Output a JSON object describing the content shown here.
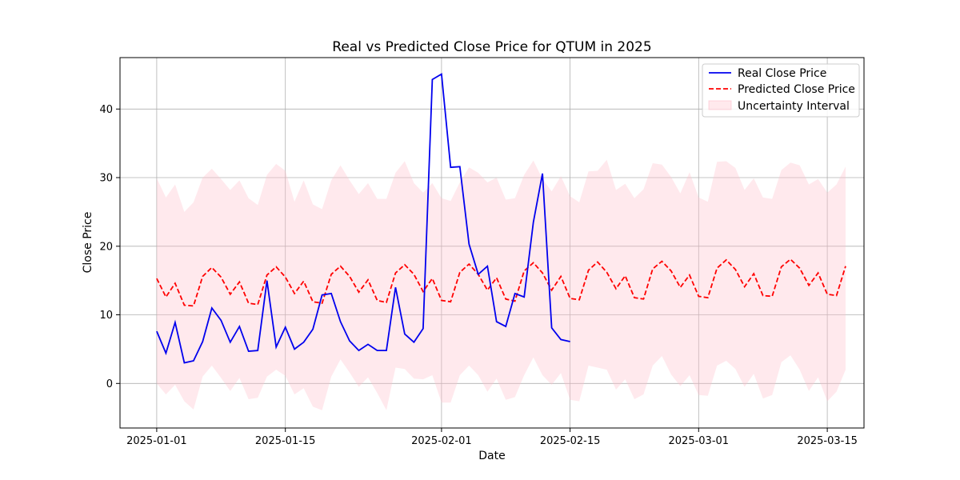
{
  "chart_data": {
    "type": "line",
    "title": "Real vs Predicted Close Price for QTUM in 2025",
    "xlabel": "Date",
    "ylabel": "Close Price",
    "x_start": "2025-01-01",
    "xlim": [
      "2024-12-28",
      "2025-03-19"
    ],
    "ylim": [
      -6.5,
      47.5
    ],
    "x_ticks": [
      "2025-01-01",
      "2025-01-15",
      "2025-02-01",
      "2025-02-15",
      "2025-03-01",
      "2025-03-15"
    ],
    "y_ticks": [
      0,
      10,
      20,
      30,
      40
    ],
    "grid": true,
    "legend_position": "top-right",
    "colors": {
      "real": "#0000ee",
      "predicted": "#ff0000",
      "interval": "#ffc0cb"
    },
    "series": [
      {
        "name": "Real Close Price",
        "style": "solid",
        "values": [
          7.6,
          4.4,
          8.9,
          3.0,
          3.3,
          6.1,
          11.0,
          9.2,
          6.0,
          8.3,
          4.7,
          4.8,
          15.0,
          5.3,
          8.2,
          5.0,
          6.0,
          7.9,
          12.9,
          13.1,
          9.0,
          6.2,
          4.8,
          5.7,
          4.8,
          4.8,
          14.0,
          7.2,
          6.0,
          8.0,
          44.3,
          45.1,
          31.5,
          31.6,
          20.3,
          15.9,
          17.1,
          9.0,
          8.3,
          13.1,
          12.6,
          23.5,
          30.6,
          8.1,
          6.4,
          6.1
        ]
      },
      {
        "name": "Predicted Close Price",
        "style": "dashed",
        "values": [
          15.3,
          12.6,
          14.6,
          11.4,
          11.3,
          15.6,
          16.9,
          15.5,
          13.0,
          14.8,
          11.7,
          11.5,
          15.8,
          17.0,
          15.5,
          13.1,
          14.9,
          11.9,
          11.7,
          15.9,
          17.1,
          15.6,
          13.3,
          15.1,
          12.1,
          11.8,
          16.1,
          17.3,
          15.9,
          13.4,
          15.3,
          12.1,
          11.9,
          16.2,
          17.4,
          15.9,
          13.6,
          15.4,
          12.3,
          12.0,
          16.4,
          17.6,
          16.1,
          13.6,
          15.6,
          12.4,
          12.2,
          16.5,
          17.7,
          16.2,
          13.8,
          15.7,
          12.5,
          12.3,
          16.7,
          17.8,
          16.4,
          14.0,
          15.8,
          12.7,
          12.5,
          16.8,
          18.0,
          16.6,
          14.1,
          16.0,
          12.8,
          12.7,
          17.0,
          18.1,
          16.8,
          14.3,
          16.1,
          13.0,
          12.8,
          17.1
        ]
      }
    ],
    "interval": {
      "name": "Uncertainty Interval",
      "upper": [
        29.9,
        27.1,
        29.0,
        25.0,
        26.4,
        30.0,
        31.3,
        29.8,
        28.2,
        29.6,
        27.0,
        26.0,
        30.4,
        32.0,
        31.0,
        26.5,
        29.6,
        26.1,
        25.4,
        29.6,
        31.8,
        29.6,
        27.6,
        29.2,
        26.9,
        26.9,
        30.7,
        32.4,
        29.2,
        27.8,
        29.2,
        27.0,
        26.6,
        29.3,
        31.5,
        30.7,
        29.3,
        30.0,
        26.8,
        27.0,
        30.4,
        32.5,
        29.8,
        28.0,
        30.2,
        27.3,
        26.4,
        30.9,
        31.0,
        32.6,
        28.2,
        29.1,
        27.0,
        28.3,
        32.1,
        31.9,
        30.1,
        27.7,
        30.8,
        27.1,
        26.5,
        32.3,
        32.4,
        31.4,
        28.2,
        29.9,
        27.1,
        26.9,
        31.1,
        32.2,
        31.8,
        29.0,
        29.8,
        27.8,
        29.0,
        31.6
      ],
      "lower": [
        0.0,
        -1.6,
        -0.2,
        -2.6,
        -3.8,
        1.0,
        2.6,
        0.8,
        -1.1,
        0.8,
        -2.3,
        -2.1,
        1.0,
        2.0,
        1.1,
        -1.6,
        -0.7,
        -3.4,
        -3.9,
        1.0,
        3.5,
        1.6,
        -0.5,
        0.9,
        -1.4,
        -3.9,
        2.3,
        2.1,
        0.7,
        0.6,
        1.2,
        -2.8,
        -2.8,
        1.2,
        2.6,
        1.2,
        -1.2,
        0.7,
        -2.4,
        -2.0,
        1.2,
        3.8,
        1.2,
        -0.2,
        1.5,
        -2.4,
        -2.6,
        2.6,
        2.3,
        2.0,
        -0.9,
        0.6,
        -2.3,
        -1.6,
        2.6,
        4.0,
        1.3,
        -0.4,
        1.2,
        -1.7,
        -1.8,
        2.6,
        3.3,
        2.1,
        -0.5,
        1.4,
        -2.2,
        -1.7,
        3.1,
        4.1,
        2.0,
        -1.1,
        0.9,
        -2.6,
        -1.2,
        2.0
      ]
    }
  }
}
